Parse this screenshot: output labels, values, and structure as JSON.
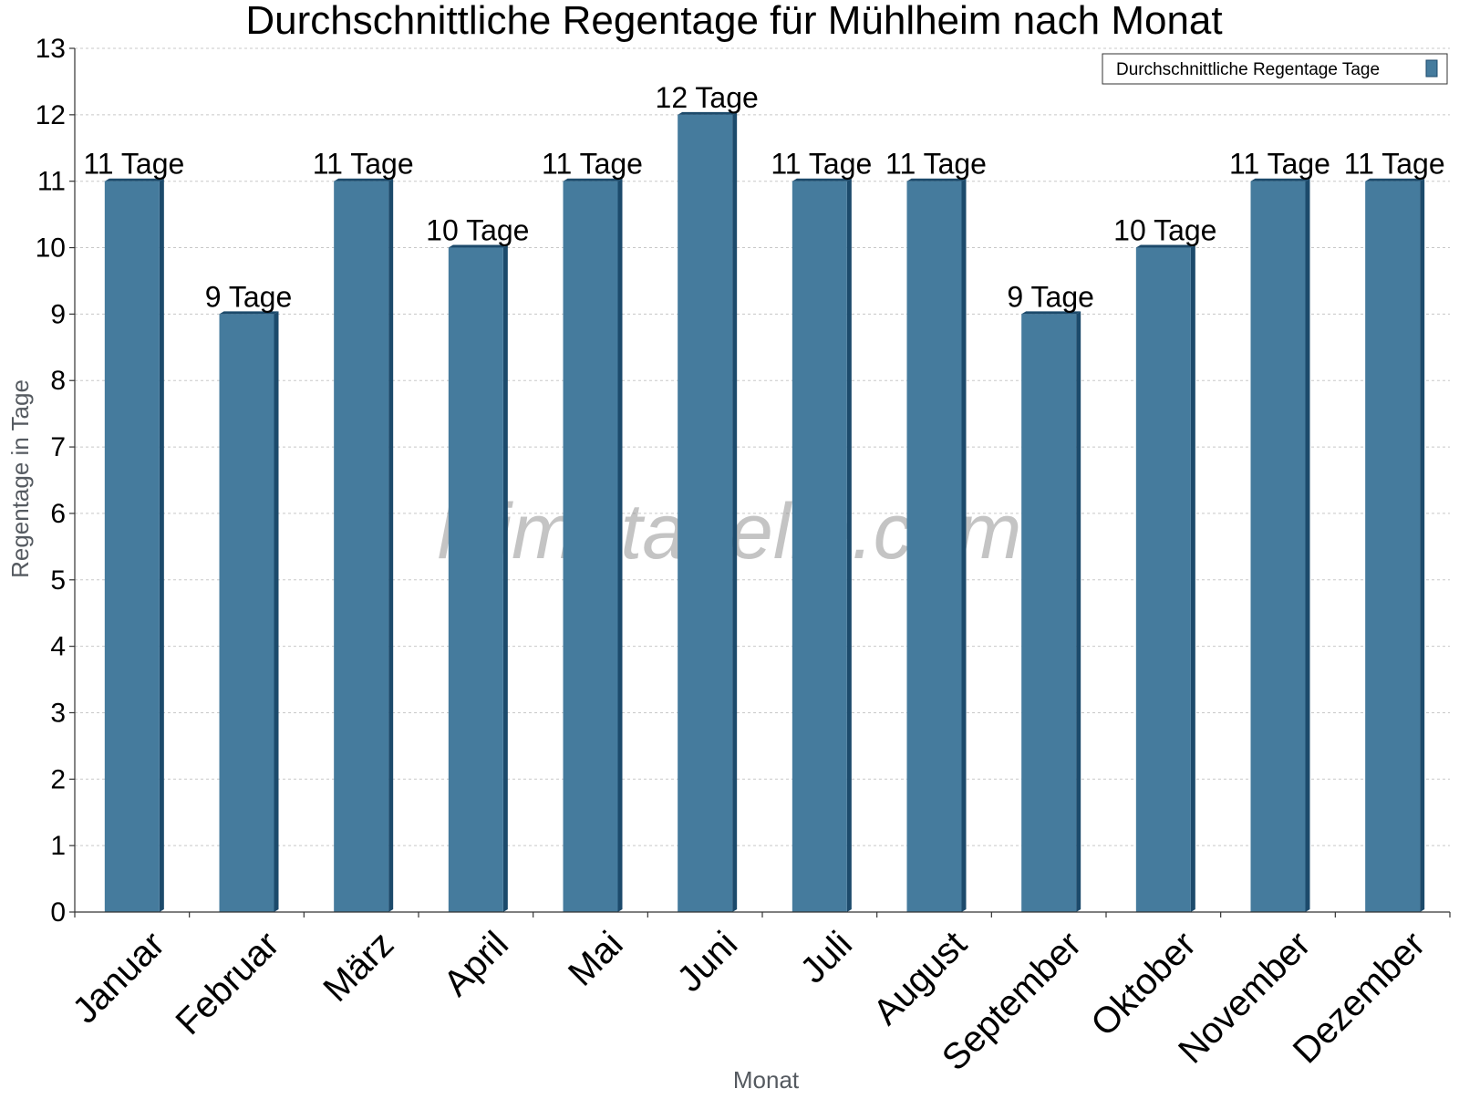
{
  "chart_data": {
    "type": "bar",
    "title": "Durchschnittliche Regentage für Mühlheim nach Monat",
    "xlabel": "Monat",
    "ylabel": "Regentage in Tage",
    "categories": [
      "Januar",
      "Februar",
      "März",
      "April",
      "Mai",
      "Juni",
      "Juli",
      "August",
      "September",
      "Oktober",
      "November",
      "Dezember"
    ],
    "series": [
      {
        "name": "Durchschnittliche Regentage Tage",
        "values": [
          11,
          9,
          11,
          10,
          11,
          12,
          11,
          11,
          9,
          10,
          11,
          11
        ],
        "data_labels": [
          "11 Tage",
          "9 Tage",
          "11 Tage",
          "10 Tage",
          "11 Tage",
          "12 Tage",
          "11 Tage",
          "11 Tage",
          "9 Tage",
          "10 Tage",
          "11 Tage",
          "11 Tage"
        ],
        "color": "#457b9d",
        "side_color": "#1c4a6b"
      }
    ],
    "ylim": [
      0,
      13
    ],
    "yticks": [
      0,
      1,
      2,
      3,
      4,
      5,
      6,
      7,
      8,
      9,
      10,
      11,
      12,
      13
    ],
    "grid": true,
    "legend_position": "top-right"
  },
  "watermark": "klimatabelle.com"
}
